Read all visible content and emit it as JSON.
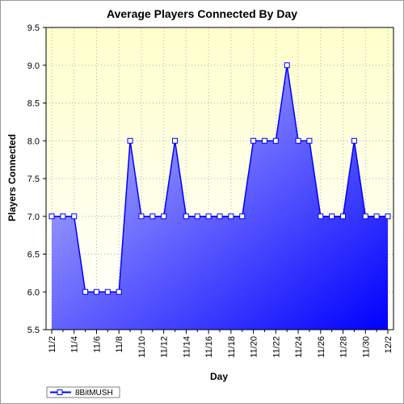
{
  "chart_data": {
    "type": "area",
    "title": "Average Players Connected By Day",
    "xlabel": "Day",
    "ylabel": "Players Connected",
    "ylim": [
      5.5,
      9.5
    ],
    "yticks": [
      5.5,
      6.0,
      6.5,
      7.0,
      7.5,
      8.0,
      8.5,
      9.0,
      9.5
    ],
    "ytick_labels": [
      "5.5",
      "6.0",
      "6.5",
      "7.0",
      "7.5",
      "8.0",
      "8.5",
      "9.0",
      "9.5"
    ],
    "x": [
      "11/2",
      "11/3",
      "11/4",
      "11/5",
      "11/6",
      "11/7",
      "11/8",
      "11/9",
      "11/10",
      "11/11",
      "11/12",
      "11/13",
      "11/14",
      "11/15",
      "11/16",
      "11/17",
      "11/18",
      "11/19",
      "11/20",
      "11/21",
      "11/22",
      "11/23",
      "11/24",
      "11/25",
      "11/26",
      "11/27",
      "11/28",
      "11/29",
      "11/30",
      "12/1",
      "12/2"
    ],
    "xtick_labels": [
      "11/2",
      "11/4",
      "11/6",
      "11/8",
      "11/10",
      "11/12",
      "11/14",
      "11/16",
      "11/18",
      "11/20",
      "11/22",
      "11/24",
      "11/26",
      "11/28",
      "11/30",
      "12/2"
    ],
    "series": [
      {
        "name": "8BitMUSH",
        "values": [
          7,
          7,
          7,
          6,
          6,
          6,
          6,
          8,
          7,
          7,
          7,
          8,
          7,
          7,
          7,
          7,
          7,
          7,
          8,
          8,
          8,
          9,
          8,
          8,
          7,
          7,
          7,
          8,
          7,
          7,
          7
        ]
      }
    ],
    "grid": true,
    "legend_position": "bottom-left",
    "colors": {
      "plot_bg_top": "#ffffcc",
      "plot_bg_bottom": "#ffffff",
      "line": "#0000ff",
      "fill_light": "#c8c8ff",
      "fill_dark": "#0000ff",
      "marker_fill": "#ffffff",
      "grid": "#b0b0b0"
    }
  }
}
